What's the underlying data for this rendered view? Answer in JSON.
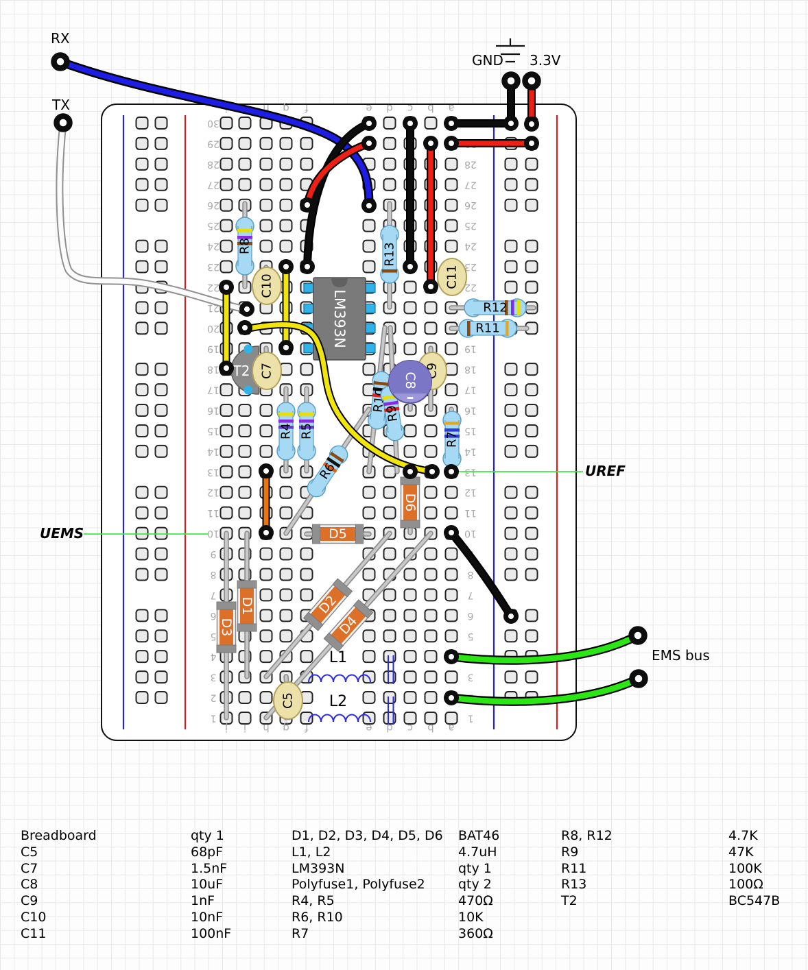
{
  "terminal_labels": {
    "rx": "RX",
    "tx": "TX",
    "gnd": "GND",
    "v33": "3.3V",
    "ems_bus": "EMS bus"
  },
  "annotations": {
    "uref": "UREF",
    "uems": "UEMS"
  },
  "breadboard": {
    "column_letters": [
      "j",
      "i",
      "h",
      "g",
      "f",
      "e",
      "d",
      "c",
      "b",
      "a"
    ],
    "row_count": 30
  },
  "components": {
    "ic": {
      "label": "LM393N"
    },
    "transistor": {
      "label": "T2"
    },
    "resistors": [
      {
        "id": "R4"
      },
      {
        "id": "R5"
      },
      {
        "id": "R6"
      },
      {
        "id": "R7"
      },
      {
        "id": "R8"
      },
      {
        "id": "R9"
      },
      {
        "id": "R10"
      },
      {
        "id": "R11"
      },
      {
        "id": "R12"
      },
      {
        "id": "R13"
      }
    ],
    "capacitors": [
      {
        "id": "C5"
      },
      {
        "id": "C7"
      },
      {
        "id": "C8"
      },
      {
        "id": "C9"
      },
      {
        "id": "C10"
      },
      {
        "id": "C11"
      }
    ],
    "diodes": [
      {
        "id": "D1"
      },
      {
        "id": "D2"
      },
      {
        "id": "D3"
      },
      {
        "id": "D4"
      },
      {
        "id": "D5"
      },
      {
        "id": "D6"
      }
    ],
    "inductors": [
      {
        "id": "L1"
      },
      {
        "id": "L2"
      }
    ]
  },
  "colors": {
    "wire_blue": "#1d1de4",
    "wire_red": "#ee2016",
    "wire_black": "#0d0d0d",
    "wire_white": "#fbfbfb",
    "wire_yellow": "#f2e50b",
    "wire_green": "#2ce514",
    "wire_orange": "#e87511",
    "annotation_green": "#42e842",
    "resistor_body": "#a6d9f3",
    "diode_body": "#dd7028",
    "cap_yellow": "#ece1a8",
    "cap_electrolytic": "#7b77c6",
    "ic_body": "#7a7a7a",
    "pin_blue": "#2fb3e8"
  },
  "parts_list": {
    "rows": [
      [
        "Breadboard",
        "qty 1",
        "D1, D2, D3, D4, D5, D6",
        "BAT46",
        "R8, R12",
        "4.7K"
      ],
      [
        "C5",
        "68pF",
        "L1, L2",
        "4.7uH",
        "R9",
        "47K"
      ],
      [
        "C7",
        "1.5nF",
        "LM393N",
        "qty 1",
        "R11",
        "100K"
      ],
      [
        "C8",
        "10uF",
        "Polyfuse1, Polyfuse2",
        "qty 2",
        "R13",
        "100Ω"
      ],
      [
        "C9",
        "1nF",
        "R4, R5",
        "470Ω",
        "T2",
        "BC547B"
      ],
      [
        "C10",
        "10nF",
        "R6, R10",
        "10K",
        "",
        ""
      ],
      [
        "C11",
        "100nF",
        "R7",
        "360Ω",
        "",
        ""
      ]
    ]
  }
}
